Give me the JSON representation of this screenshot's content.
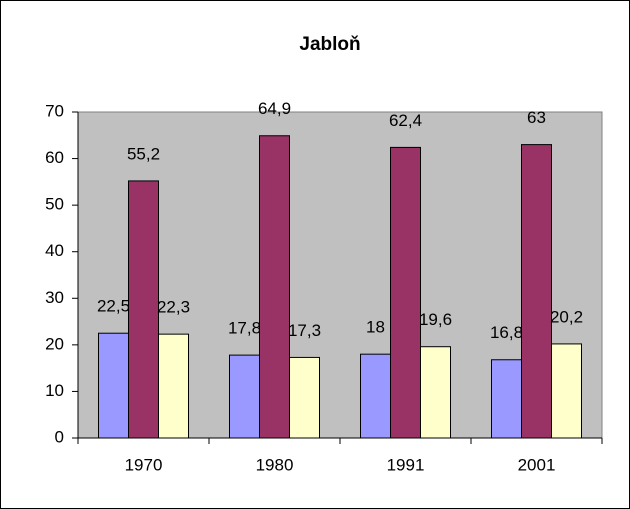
{
  "chart_data": {
    "type": "bar",
    "title": "Jabloň",
    "categories": [
      "1970",
      "1980",
      "1991",
      "2001"
    ],
    "series": [
      {
        "color": "#9999ff",
        "values": [
          22.5,
          17.8,
          18,
          16.8
        ],
        "value_labels": [
          "22,5",
          "17,8",
          "18",
          "16,8"
        ]
      },
      {
        "color": "#993366",
        "values": [
          55.2,
          64.9,
          62.4,
          63
        ],
        "value_labels": [
          "55,2",
          "64,9",
          "62,4",
          "63"
        ]
      },
      {
        "color": "#ffffcc",
        "values": [
          22.3,
          17.3,
          19.6,
          20.2
        ],
        "value_labels": [
          "22,3",
          "17,3",
          "19,6",
          "20,2"
        ]
      }
    ],
    "ylim": [
      0,
      70
    ],
    "yticks": [
      0,
      10,
      20,
      30,
      40,
      50,
      60,
      70
    ],
    "grid": false,
    "plot_background": "#c0c0c0"
  }
}
